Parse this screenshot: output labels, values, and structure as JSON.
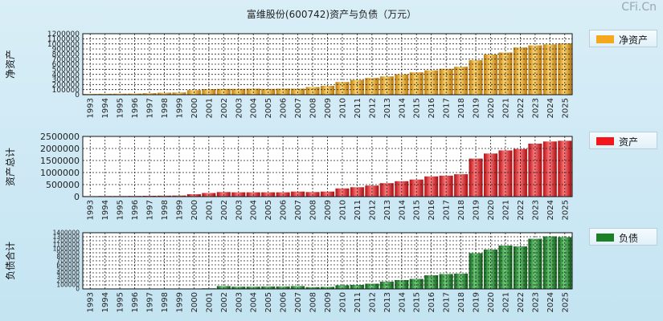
{
  "title": "富维股份(600742)资产与负债（万元）",
  "watermark": "CFi.Cn",
  "chart_data": [
    {
      "type": "bar",
      "ylabel": "净资产",
      "legend": "净资产",
      "color": "#f4a81c",
      "ylim": [
        0,
        1200000
      ],
      "yticks": [
        0,
        100000,
        200000,
        300000,
        400000,
        500000,
        600000,
        700000,
        800000,
        900000,
        1000000,
        1100000,
        1200000
      ],
      "categories": [
        "1993",
        "1994",
        "1995",
        "1996",
        "1997",
        "1998",
        "1999",
        "2000",
        "2001",
        "2002",
        "2003",
        "2004",
        "2005",
        "2006",
        "2007",
        "2008",
        "2009",
        "2010",
        "2011",
        "2012",
        "2013",
        "2014",
        "2015",
        "2016",
        "2017",
        "2018",
        "2019",
        "2020",
        "2021",
        "2022",
        "2023",
        "2024",
        "2025"
      ],
      "values": [
        15000,
        18000,
        20000,
        22000,
        30000,
        40000,
        45000,
        90000,
        110000,
        115000,
        115000,
        120000,
        115000,
        120000,
        120000,
        150000,
        175000,
        250000,
        290000,
        330000,
        360000,
        400000,
        440000,
        480000,
        510000,
        550000,
        680000,
        790000,
        830000,
        930000,
        970000,
        990000,
        1010000
      ]
    },
    {
      "type": "bar",
      "ylabel": "资产总计",
      "legend": "资产",
      "color": "#e8171c",
      "ylim": [
        0,
        2500000
      ],
      "yticks": [
        0,
        500000,
        1000000,
        1500000,
        2000000,
        2500000
      ],
      "categories": [
        "1993",
        "1994",
        "1995",
        "1996",
        "1997",
        "1998",
        "1999",
        "2000",
        "2001",
        "2002",
        "2003",
        "2004",
        "2005",
        "2006",
        "2007",
        "2008",
        "2009",
        "2010",
        "2011",
        "2012",
        "2013",
        "2014",
        "2015",
        "2016",
        "2017",
        "2018",
        "2019",
        "2020",
        "2021",
        "2022",
        "2023",
        "2024",
        "2025"
      ],
      "values": [
        20000,
        25000,
        25000,
        28000,
        35000,
        40000,
        45000,
        100000,
        150000,
        190000,
        180000,
        180000,
        180000,
        180000,
        210000,
        190000,
        210000,
        340000,
        390000,
        460000,
        560000,
        640000,
        710000,
        840000,
        870000,
        930000,
        1580000,
        1790000,
        1920000,
        1980000,
        2200000,
        2290000,
        2320000
      ]
    },
    {
      "type": "bar",
      "ylabel": "负债合计",
      "legend": "负债",
      "color": "#1a8a26",
      "ylim": [
        0,
        1400000
      ],
      "yticks": [
        0,
        100000,
        200000,
        300000,
        400000,
        500000,
        600000,
        700000,
        800000,
        900000,
        1000000,
        1100000,
        1200000,
        1300000,
        1400000
      ],
      "categories": [
        "1993",
        "1994",
        "1995",
        "1996",
        "1997",
        "1998",
        "1999",
        "2000",
        "2001",
        "2002",
        "2003",
        "2004",
        "2005",
        "2006",
        "2007",
        "2008",
        "2009",
        "2010",
        "2011",
        "2012",
        "2013",
        "2014",
        "2015",
        "2016",
        "2017",
        "2018",
        "2019",
        "2020",
        "2021",
        "2022",
        "2023",
        "2024",
        "2025"
      ],
      "values": [
        5000,
        5000,
        5000,
        5000,
        5000,
        5000,
        5000,
        10000,
        15000,
        70000,
        55000,
        55000,
        60000,
        60000,
        70000,
        45000,
        50000,
        90000,
        100000,
        130000,
        180000,
        220000,
        250000,
        340000,
        370000,
        380000,
        890000,
        980000,
        1080000,
        1060000,
        1250000,
        1310000,
        1290000
      ]
    }
  ]
}
